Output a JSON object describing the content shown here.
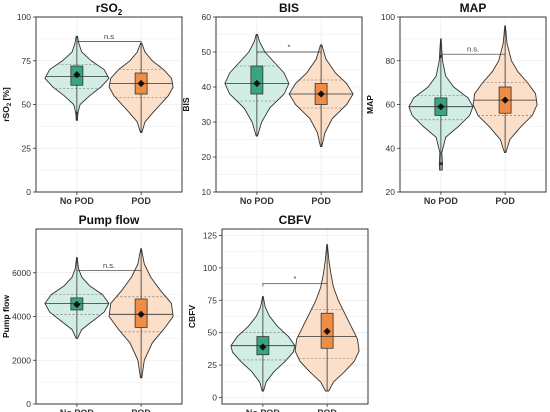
{
  "colors": {
    "no_pod_fill": "#d2ede4",
    "no_pod_box": "#3aa481",
    "pod_fill": "#fbdfc8",
    "pod_box": "#ef8c45",
    "panel_border": "#222222",
    "grid": "#ececec",
    "point": "#111111"
  },
  "chart_data": [
    {
      "type": "violin",
      "title": "rSO",
      "title_subscript": "2",
      "ylabel": "rSO",
      "ylabel_subscript": "2",
      "ylabel_suffix": " [%]",
      "categories": [
        "No POD",
        "POD"
      ],
      "ylim": [
        0,
        100
      ],
      "yticks": [
        0,
        25,
        50,
        75,
        100
      ],
      "groups": [
        {
          "category": "No POD",
          "min": 41,
          "max": 89,
          "q1": 61,
          "median": 66,
          "q3": 72,
          "mean": 67,
          "violin_ci": [
            59,
            73
          ],
          "outliers": [
            45
          ],
          "density": [
            [
              41,
              0.02
            ],
            [
              45,
              0.03
            ],
            [
              50,
              0.1
            ],
            [
              55,
              0.4
            ],
            [
              60,
              0.75
            ],
            [
              65,
              1.0
            ],
            [
              70,
              0.85
            ],
            [
              75,
              0.45
            ],
            [
              80,
              0.15
            ],
            [
              85,
              0.06
            ],
            [
              89,
              0.02
            ]
          ]
        },
        {
          "category": "POD",
          "min": 34,
          "max": 85,
          "q1": 56,
          "median": 62,
          "q3": 68,
          "mean": 62,
          "violin_ci": [
            54,
            70
          ],
          "outliers": [],
          "density": [
            [
              34,
              0.02
            ],
            [
              40,
              0.12
            ],
            [
              45,
              0.35
            ],
            [
              50,
              0.6
            ],
            [
              55,
              0.85
            ],
            [
              60,
              1.0
            ],
            [
              65,
              0.95
            ],
            [
              70,
              0.7
            ],
            [
              75,
              0.35
            ],
            [
              80,
              0.12
            ],
            [
              85,
              0.02
            ]
          ]
        }
      ],
      "significance": {
        "label": "n.s",
        "y": 86
      }
    },
    {
      "type": "violin",
      "title": "BIS",
      "ylabel": "BIS",
      "categories": [
        "No POD",
        "POD"
      ],
      "ylim": [
        10,
        60
      ],
      "yticks": [
        10,
        20,
        30,
        40,
        50,
        60
      ],
      "groups": [
        {
          "category": "No POD",
          "min": 26,
          "max": 55,
          "q1": 38,
          "median": 41,
          "q3": 46,
          "mean": 41,
          "violin_ci": [
            36,
            46
          ],
          "outliers": [],
          "density": [
            [
              26,
              0.02
            ],
            [
              30,
              0.15
            ],
            [
              34,
              0.4
            ],
            [
              38,
              0.85
            ],
            [
              41,
              1.0
            ],
            [
              44,
              0.85
            ],
            [
              47,
              0.55
            ],
            [
              50,
              0.25
            ],
            [
              53,
              0.08
            ],
            [
              55,
              0.02
            ]
          ]
        },
        {
          "category": "POD",
          "min": 23,
          "max": 52,
          "q1": 35,
          "median": 38,
          "q3": 41,
          "mean": 38,
          "violin_ci": [
            34,
            42
          ],
          "outliers": [],
          "density": [
            [
              23,
              0.02
            ],
            [
              27,
              0.12
            ],
            [
              31,
              0.35
            ],
            [
              35,
              0.8
            ],
            [
              38,
              1.0
            ],
            [
              41,
              0.8
            ],
            [
              44,
              0.45
            ],
            [
              48,
              0.15
            ],
            [
              52,
              0.02
            ]
          ]
        }
      ],
      "significance": {
        "label": "*",
        "y": 50
      }
    },
    {
      "type": "violin",
      "title": "MAP",
      "ylabel": "MAP",
      "categories": [
        "No POD",
        "POD"
      ],
      "ylim": [
        20,
        100
      ],
      "yticks": [
        20,
        40,
        60,
        80,
        100
      ],
      "groups": [
        {
          "category": "No POD",
          "min": 30,
          "max": 90,
          "q1": 55,
          "median": 59,
          "q3": 63,
          "mean": 59,
          "violin_ci": [
            53,
            64
          ],
          "outliers": [
            82,
            33
          ],
          "density": [
            [
              30,
              0.04
            ],
            [
              33,
              0.05
            ],
            [
              38,
              0.03
            ],
            [
              45,
              0.15
            ],
            [
              50,
              0.55
            ],
            [
              55,
              0.9
            ],
            [
              59,
              1.0
            ],
            [
              63,
              0.85
            ],
            [
              68,
              0.4
            ],
            [
              73,
              0.15
            ],
            [
              80,
              0.05
            ],
            [
              85,
              0.03
            ],
            [
              90,
              0.01
            ]
          ]
        },
        {
          "category": "POD",
          "min": 38,
          "max": 96,
          "q1": 56,
          "median": 62,
          "q3": 68,
          "mean": 62,
          "violin_ci": [
            55,
            70
          ],
          "outliers": [],
          "density": [
            [
              38,
              0.02
            ],
            [
              44,
              0.15
            ],
            [
              50,
              0.5
            ],
            [
              55,
              0.85
            ],
            [
              60,
              1.0
            ],
            [
              65,
              0.95
            ],
            [
              70,
              0.7
            ],
            [
              75,
              0.4
            ],
            [
              80,
              0.2
            ],
            [
              88,
              0.06
            ],
            [
              96,
              0.01
            ]
          ]
        }
      ],
      "significance": {
        "label": "n.s.",
        "y": 83
      }
    },
    {
      "type": "violin",
      "title": "Pump flow",
      "ylabel": "Pump flow",
      "categories": [
        "No POD",
        "POD"
      ],
      "ylim": [
        0,
        8000
      ],
      "yticks": [
        0,
        2000,
        4000,
        6000
      ],
      "groups": [
        {
          "category": "No POD",
          "min": 3000,
          "max": 6700,
          "q1": 4300,
          "median": 4600,
          "q3": 4850,
          "mean": 4550,
          "violin_ci": [
            4100,
            5000
          ],
          "outliers": [],
          "density": [
            [
              3000,
              0.02
            ],
            [
              3400,
              0.15
            ],
            [
              3800,
              0.5
            ],
            [
              4200,
              0.85
            ],
            [
              4600,
              1.0
            ],
            [
              5000,
              0.8
            ],
            [
              5400,
              0.4
            ],
            [
              5800,
              0.15
            ],
            [
              6200,
              0.05
            ],
            [
              6700,
              0.01
            ]
          ]
        },
        {
          "category": "POD",
          "min": 1200,
          "max": 7100,
          "q1": 3500,
          "median": 4100,
          "q3": 4800,
          "mean": 4100,
          "violin_ci": [
            3300,
            4900
          ],
          "outliers": [],
          "density": [
            [
              1200,
              0.02
            ],
            [
              2000,
              0.1
            ],
            [
              2800,
              0.35
            ],
            [
              3400,
              0.7
            ],
            [
              4000,
              1.0
            ],
            [
              4600,
              0.95
            ],
            [
              5200,
              0.6
            ],
            [
              5800,
              0.3
            ],
            [
              6400,
              0.1
            ],
            [
              7100,
              0.01
            ]
          ]
        }
      ],
      "significance": {
        "label": "n.s.",
        "y": 6100
      }
    },
    {
      "type": "violin",
      "title": "CBFV",
      "ylabel": "CBFV",
      "categories": [
        "No POD",
        "POD"
      ],
      "ylim": [
        -5,
        130
      ],
      "yticks": [
        0,
        25,
        50,
        75,
        100,
        125
      ],
      "groups": [
        {
          "category": "No POD",
          "min": 5,
          "max": 78,
          "q1": 33,
          "median": 40,
          "q3": 47,
          "mean": 39,
          "violin_ci": [
            29,
            50
          ],
          "outliers": [],
          "density": [
            [
              5,
              0.02
            ],
            [
              12,
              0.1
            ],
            [
              20,
              0.35
            ],
            [
              28,
              0.7
            ],
            [
              35,
              0.95
            ],
            [
              40,
              1.0
            ],
            [
              47,
              0.8
            ],
            [
              55,
              0.45
            ],
            [
              63,
              0.2
            ],
            [
              70,
              0.07
            ],
            [
              78,
              0.01
            ]
          ]
        },
        {
          "category": "POD",
          "min": 5,
          "max": 118,
          "q1": 38,
          "median": 47,
          "q3": 65,
          "mean": 51,
          "violin_ci": [
            30,
            68
          ],
          "outliers": [],
          "density": [
            [
              5,
              0.05
            ],
            [
              12,
              0.2
            ],
            [
              20,
              0.55
            ],
            [
              28,
              0.85
            ],
            [
              36,
              1.0
            ],
            [
              45,
              0.95
            ],
            [
              55,
              0.75
            ],
            [
              65,
              0.55
            ],
            [
              75,
              0.35
            ],
            [
              85,
              0.2
            ],
            [
              95,
              0.12
            ],
            [
              105,
              0.06
            ],
            [
              118,
              0.01
            ]
          ]
        }
      ],
      "significance": {
        "label": "*",
        "y": 88
      }
    }
  ]
}
